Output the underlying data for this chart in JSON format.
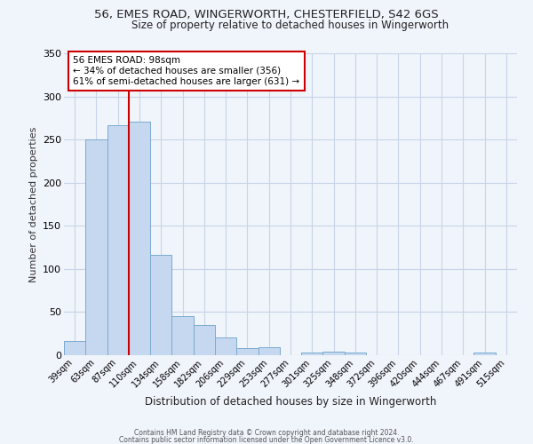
{
  "title1": "56, EMES ROAD, WINGERWORTH, CHESTERFIELD, S42 6GS",
  "title2": "Size of property relative to detached houses in Wingerworth",
  "xlabel": "Distribution of detached houses by size in Wingerworth",
  "ylabel": "Number of detached properties",
  "bar_labels": [
    "39sqm",
    "63sqm",
    "87sqm",
    "110sqm",
    "134sqm",
    "158sqm",
    "182sqm",
    "206sqm",
    "229sqm",
    "253sqm",
    "277sqm",
    "301sqm",
    "325sqm",
    "348sqm",
    "372sqm",
    "396sqm",
    "420sqm",
    "444sqm",
    "467sqm",
    "491sqm",
    "515sqm"
  ],
  "bar_values": [
    16,
    250,
    267,
    271,
    116,
    45,
    35,
    21,
    8,
    9,
    0,
    3,
    4,
    3,
    0,
    0,
    0,
    0,
    0,
    3,
    0
  ],
  "bar_color": "#c5d8f0",
  "bar_edge_color": "#7aabcf",
  "vline_x": 2.5,
  "vline_color": "#cc0000",
  "annotation_title": "56 EMES ROAD: 98sqm",
  "annotation_line1": "← 34% of detached houses are smaller (356)",
  "annotation_line2": "61% of semi-detached houses are larger (631) →",
  "annotation_box_color": "#ffffff",
  "annotation_box_edge": "#cc0000",
  "ylim": [
    0,
    350
  ],
  "yticks": [
    0,
    50,
    100,
    150,
    200,
    250,
    300,
    350
  ],
  "footer1": "Contains HM Land Registry data © Crown copyright and database right 2024.",
  "footer2": "Contains public sector information licensed under the Open Government Licence v3.0.",
  "bg_color": "#f0f4fb",
  "plot_bg_color": "#f0f4fb",
  "grid_color": "#c8d4e8",
  "title1_fontsize": 9.5,
  "title2_fontsize": 8.5,
  "ylabel_fontsize": 8,
  "xlabel_fontsize": 8.5
}
